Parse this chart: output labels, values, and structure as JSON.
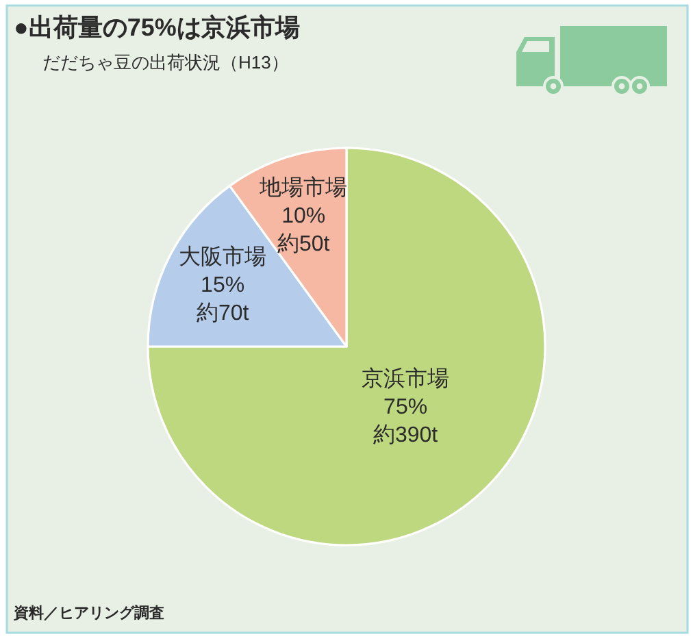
{
  "chart_data": {
    "type": "pie",
    "title": "●出荷量の75%は京浜市場",
    "subtitle": "だだちゃ豆の出荷状況（H13）",
    "categories": [
      "京浜市場",
      "大阪市場",
      "地場市場"
    ],
    "values": [
      75,
      15,
      10
    ],
    "colors": [
      "#bdd87e",
      "#b5cdea",
      "#f6b8a3"
    ],
    "value_labels": [
      "75%",
      "15%",
      "10%"
    ],
    "annotations": [
      {
        "text": "約390t",
        "x": "京浜市場"
      },
      {
        "text": "約70t",
        "x": "大阪市場"
      },
      {
        "text": "約50t",
        "x": "地場市場"
      },
      "資料／ヒアリング調査"
    ]
  }
}
